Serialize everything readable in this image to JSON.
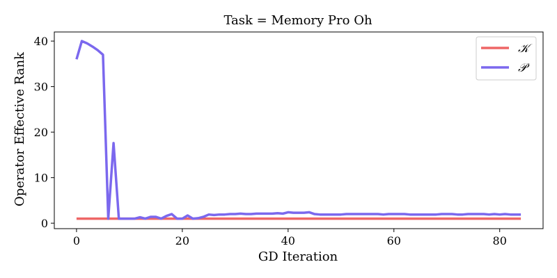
{
  "chart_data": {
    "type": "line",
    "title": "Task = Memory Pro Oh",
    "xlabel": "GD Iteration",
    "ylabel": "Operator Effective Rank",
    "xlim": [
      -4.2,
      88.2
    ],
    "ylim": [
      -1.2,
      42
    ],
    "xticks": [
      0,
      20,
      40,
      60,
      80
    ],
    "yticks": [
      0,
      10,
      20,
      30,
      40
    ],
    "grid": false,
    "legend_position": "top-right",
    "x": [
      0,
      1,
      2,
      3,
      4,
      5,
      6,
      7,
      8,
      9,
      10,
      11,
      12,
      13,
      14,
      15,
      16,
      17,
      18,
      19,
      20,
      21,
      22,
      23,
      24,
      25,
      26,
      27,
      28,
      29,
      30,
      31,
      32,
      33,
      34,
      35,
      36,
      37,
      38,
      39,
      40,
      41,
      42,
      43,
      44,
      45,
      46,
      47,
      48,
      49,
      50,
      51,
      52,
      53,
      54,
      55,
      56,
      57,
      58,
      59,
      60,
      61,
      62,
      63,
      64,
      65,
      66,
      67,
      68,
      69,
      70,
      71,
      72,
      73,
      74,
      75,
      76,
      77,
      78,
      79,
      80,
      81,
      82,
      83,
      84
    ],
    "series": [
      {
        "name": "𝒦",
        "color": "#ee6666",
        "values": [
          1.0,
          1.0,
          1.0,
          1.0,
          1.0,
          1.0,
          1.0,
          1.0,
          1.0,
          1.0,
          1.0,
          1.0,
          1.0,
          1.0,
          1.0,
          1.0,
          1.0,
          1.0,
          1.0,
          1.0,
          1.0,
          1.0,
          1.0,
          1.0,
          1.0,
          1.0,
          1.0,
          1.0,
          1.0,
          1.0,
          1.0,
          1.0,
          1.0,
          1.0,
          1.0,
          1.0,
          1.0,
          1.0,
          1.0,
          1.0,
          1.0,
          1.0,
          1.0,
          1.0,
          1.0,
          1.0,
          1.0,
          1.0,
          1.0,
          1.0,
          1.0,
          1.0,
          1.0,
          1.0,
          1.0,
          1.0,
          1.0,
          1.0,
          1.0,
          1.0,
          1.0,
          1.0,
          1.0,
          1.0,
          1.0,
          1.0,
          1.0,
          1.0,
          1.0,
          1.0,
          1.0,
          1.0,
          1.0,
          1.0,
          1.0,
          1.0,
          1.0,
          1.0,
          1.0,
          1.0,
          1.0,
          1.0,
          1.0,
          1.0,
          1.0
        ]
      },
      {
        "name": "𝒫",
        "color": "#7b68ee",
        "values": [
          36,
          40,
          39.5,
          38.8,
          38,
          37,
          1,
          17.6,
          1,
          1,
          1,
          1,
          1.3,
          1,
          1.4,
          1.4,
          1,
          1.6,
          2,
          1,
          1,
          1.7,
          1,
          1.1,
          1.4,
          1.9,
          1.8,
          1.9,
          1.9,
          2,
          2,
          2.1,
          2,
          2,
          2.1,
          2.1,
          2.1,
          2.1,
          2.2,
          2.1,
          2.4,
          2.3,
          2.3,
          2.3,
          2.4,
          2,
          1.9,
          1.9,
          1.9,
          1.9,
          1.9,
          2,
          2,
          2,
          2,
          2,
          2,
          2,
          1.9,
          2,
          2,
          2,
          2,
          1.9,
          1.9,
          1.9,
          1.9,
          1.9,
          1.9,
          2,
          2,
          2,
          1.9,
          1.9,
          2,
          2,
          2,
          2,
          1.9,
          2,
          1.9,
          2,
          1.9,
          1.9,
          1.9
        ]
      }
    ]
  }
}
